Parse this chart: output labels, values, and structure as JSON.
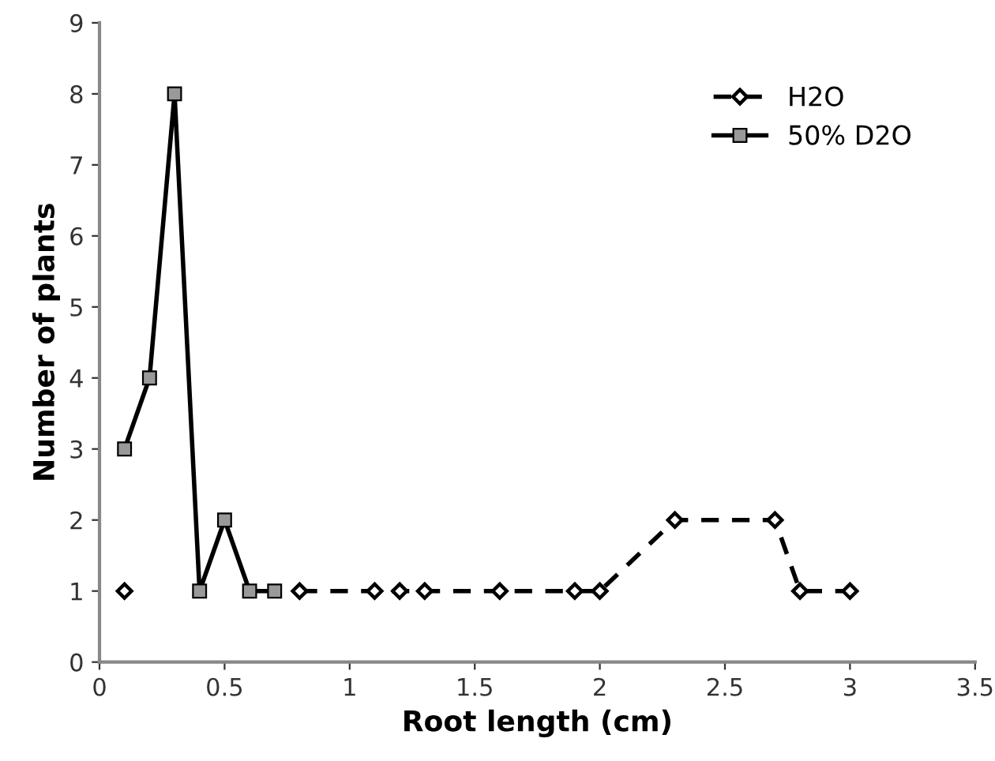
{
  "chart_data": {
    "type": "line",
    "xlabel": "Root length (cm)",
    "ylabel": "Number of plants",
    "xlim": [
      0,
      3.5
    ],
    "xticks": [
      0,
      0.5,
      1,
      1.5,
      2,
      2.5,
      3,
      3.5
    ],
    "ylim": [
      0,
      9
    ],
    "yticks": [
      0,
      1,
      2,
      3,
      4,
      5,
      6,
      7,
      8,
      9
    ],
    "grid": false,
    "legend": "top right",
    "series": [
      {
        "name": "H2O",
        "color": "#000000",
        "marker": "diamond",
        "line_style": "dashed",
        "x": [
          0.1,
          0.4,
          0.8,
          1.1,
          1.2,
          1.3,
          1.6,
          1.9,
          2.0,
          2.3,
          2.7,
          2.8,
          3.0
        ],
        "values": [
          1,
          null,
          1,
          1,
          1,
          1,
          1,
          1,
          1,
          2,
          2,
          1,
          1
        ]
      },
      {
        "name": "50% D2O",
        "color": "#000000",
        "marker": "square",
        "line_style": "solid",
        "x": [
          0.1,
          0.2,
          0.3,
          0.4,
          0.5,
          0.6,
          0.7
        ],
        "values": [
          3,
          4,
          8,
          1,
          2,
          1,
          1
        ]
      }
    ]
  }
}
